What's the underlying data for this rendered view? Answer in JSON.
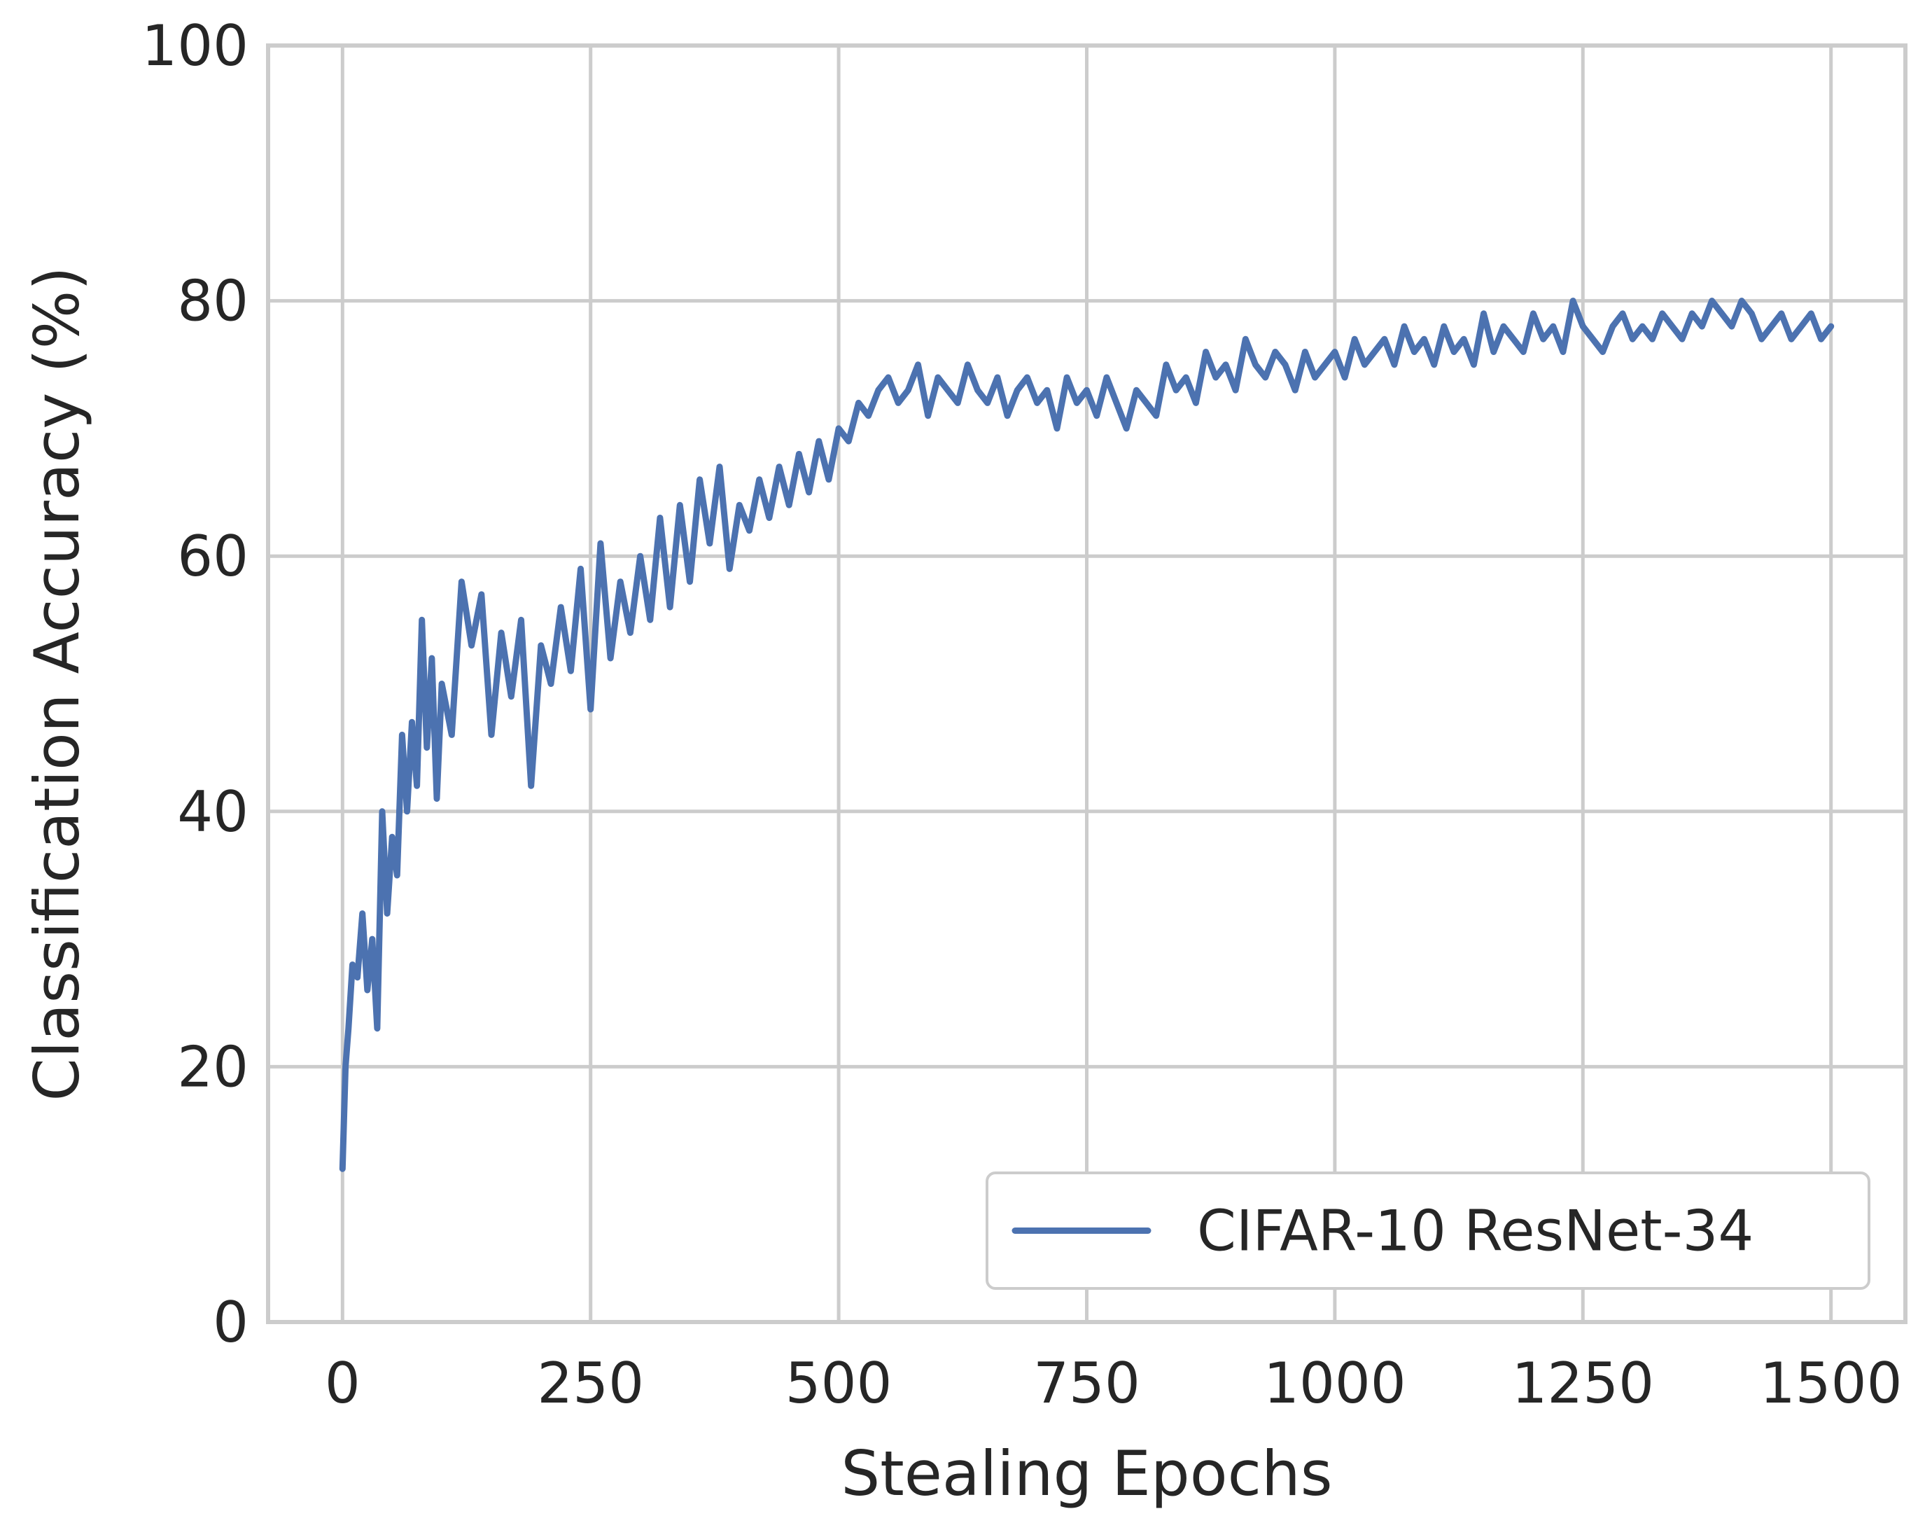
{
  "chart_data": {
    "type": "line",
    "xlabel": "Stealing Epochs",
    "ylabel": "Classification Accuracy (%)",
    "xlim": [
      -75,
      1575
    ],
    "ylim": [
      0,
      100
    ],
    "xticks": [
      0,
      250,
      500,
      750,
      1000,
      1250,
      1500
    ],
    "xtick_labels": [
      "0",
      "250",
      "500",
      "750",
      "1000",
      "1250",
      "1500"
    ],
    "yticks": [
      0,
      20,
      40,
      60,
      80,
      100
    ],
    "ytick_labels": [
      "0",
      "20",
      "40",
      "60",
      "80",
      "100"
    ],
    "grid": true,
    "legend_position": "lower-right",
    "series_color": "#4c72b0",
    "series": [
      {
        "name": "CIFAR-10 ResNet-34",
        "x": [
          0,
          3,
          6,
          10,
          15,
          20,
          25,
          30,
          35,
          40,
          45,
          50,
          55,
          60,
          65,
          70,
          75,
          80,
          85,
          90,
          95,
          100,
          110,
          120,
          130,
          140,
          150,
          160,
          170,
          180,
          190,
          200,
          210,
          220,
          230,
          240,
          250,
          260,
          270,
          280,
          290,
          300,
          310,
          320,
          330,
          340,
          350,
          360,
          370,
          380,
          390,
          400,
          410,
          420,
          430,
          440,
          450,
          460,
          470,
          480,
          490,
          500,
          510,
          520,
          530,
          540,
          550,
          560,
          570,
          580,
          590,
          600,
          610,
          620,
          630,
          640,
          650,
          660,
          670,
          680,
          690,
          700,
          710,
          720,
          730,
          740,
          750,
          760,
          770,
          780,
          790,
          800,
          810,
          820,
          830,
          840,
          850,
          860,
          870,
          880,
          890,
          900,
          910,
          920,
          930,
          940,
          950,
          960,
          970,
          980,
          990,
          1000,
          1010,
          1020,
          1030,
          1040,
          1050,
          1060,
          1070,
          1080,
          1090,
          1100,
          1110,
          1120,
          1130,
          1140,
          1150,
          1160,
          1170,
          1180,
          1190,
          1200,
          1210,
          1220,
          1230,
          1240,
          1250,
          1260,
          1270,
          1280,
          1290,
          1300,
          1310,
          1320,
          1330,
          1340,
          1350,
          1360,
          1370,
          1380,
          1390,
          1400,
          1410,
          1420,
          1430,
          1440,
          1450,
          1460,
          1470,
          1480,
          1490,
          1500
        ],
        "values": [
          12,
          20,
          23,
          28,
          27,
          32,
          26,
          30,
          23,
          40,
          32,
          38,
          35,
          46,
          40,
          47,
          42,
          55,
          45,
          52,
          41,
          50,
          46,
          58,
          53,
          57,
          46,
          54,
          49,
          55,
          42,
          53,
          50,
          56,
          51,
          59,
          48,
          61,
          52,
          58,
          54,
          60,
          55,
          63,
          56,
          64,
          58,
          66,
          61,
          67,
          59,
          64,
          62,
          66,
          63,
          67,
          64,
          68,
          65,
          69,
          66,
          70,
          69,
          72,
          71,
          73,
          74,
          72,
          73,
          75,
          71,
          74,
          73,
          72,
          75,
          73,
          72,
          74,
          71,
          73,
          74,
          72,
          73,
          70,
          74,
          72,
          73,
          71,
          74,
          72,
          70,
          73,
          72,
          71,
          75,
          73,
          74,
          72,
          76,
          74,
          75,
          73,
          77,
          75,
          74,
          76,
          75,
          73,
          76,
          74,
          75,
          76,
          74,
          77,
          75,
          76,
          77,
          75,
          78,
          76,
          77,
          75,
          78,
          76,
          77,
          75,
          79,
          76,
          78,
          77,
          76,
          79,
          77,
          78,
          76,
          80,
          78,
          77,
          76,
          78,
          79,
          77,
          78,
          77,
          79,
          78,
          77,
          79,
          78,
          80,
          79,
          78,
          80,
          79,
          77,
          78,
          79,
          77,
          78,
          79,
          77,
          78
        ]
      }
    ]
  }
}
